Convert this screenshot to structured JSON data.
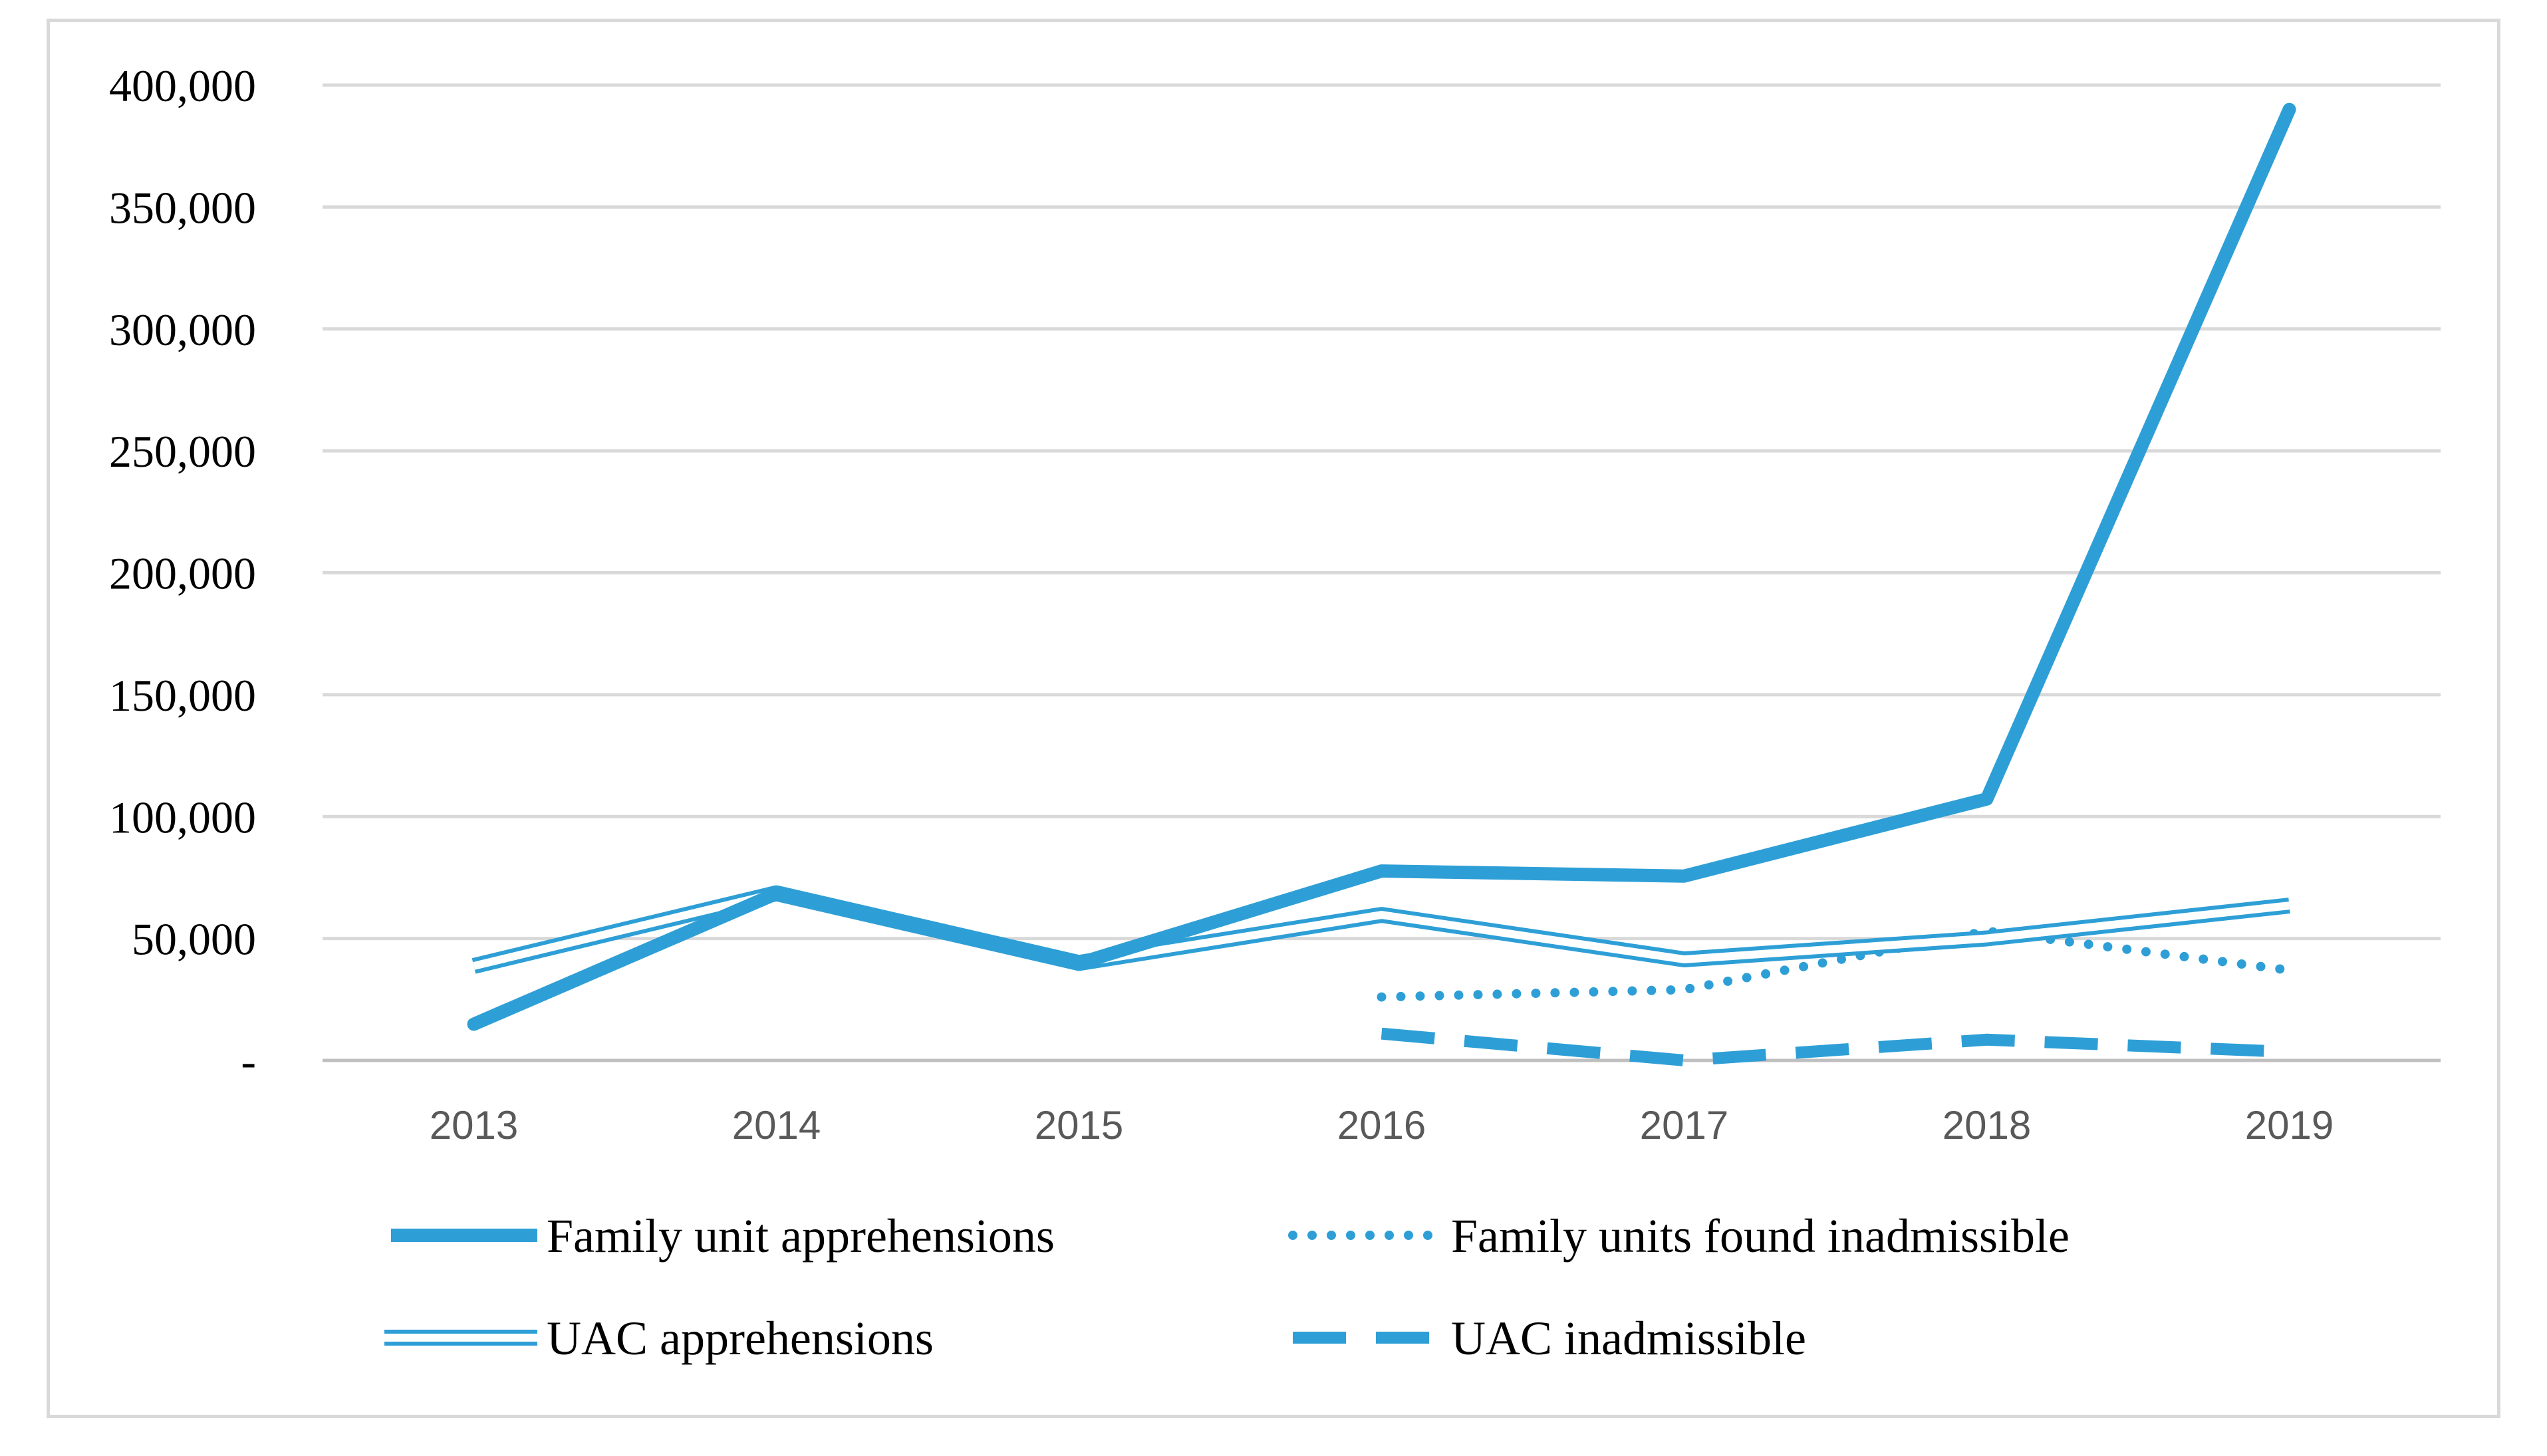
{
  "colors": {
    "series": "#2e9fd6",
    "grid": "#d9d9d9",
    "axis": "#bfbfbf"
  },
  "chart_data": {
    "type": "line",
    "title": "",
    "xlabel": "",
    "ylabel": "",
    "categories": [
      "2013",
      "2014",
      "2015",
      "2016",
      "2017",
      "2018",
      "2019"
    ],
    "ylim": [
      0,
      400000
    ],
    "yticks": [
      0,
      50000,
      100000,
      150000,
      200000,
      250000,
      300000,
      350000,
      400000
    ],
    "ytick_labels": [
      "-",
      "50,000",
      "100,000",
      "150,000",
      "200,000",
      "250,000",
      "300,000",
      "350,000",
      "400,000"
    ],
    "grid": true,
    "legend_position": "bottom",
    "series": [
      {
        "name": "Family unit apprehensions",
        "style": "solid-thick",
        "values": [
          14855,
          68445,
          39838,
          77674,
          75622,
          107212,
          390000
        ]
      },
      {
        "name": "Family units found inadmissible",
        "style": "dotted",
        "values": [
          null,
          null,
          null,
          26000,
          29000,
          53000,
          37000
        ]
      },
      {
        "name": "UAC apprehensions",
        "style": "double",
        "values": [
          38759,
          68541,
          39970,
          59692,
          41435,
          50036,
          63500
        ]
      },
      {
        "name": "UAC inadmissible",
        "style": "dashed",
        "values": [
          null,
          null,
          null,
          11000,
          0,
          8500,
          3500
        ]
      }
    ]
  }
}
